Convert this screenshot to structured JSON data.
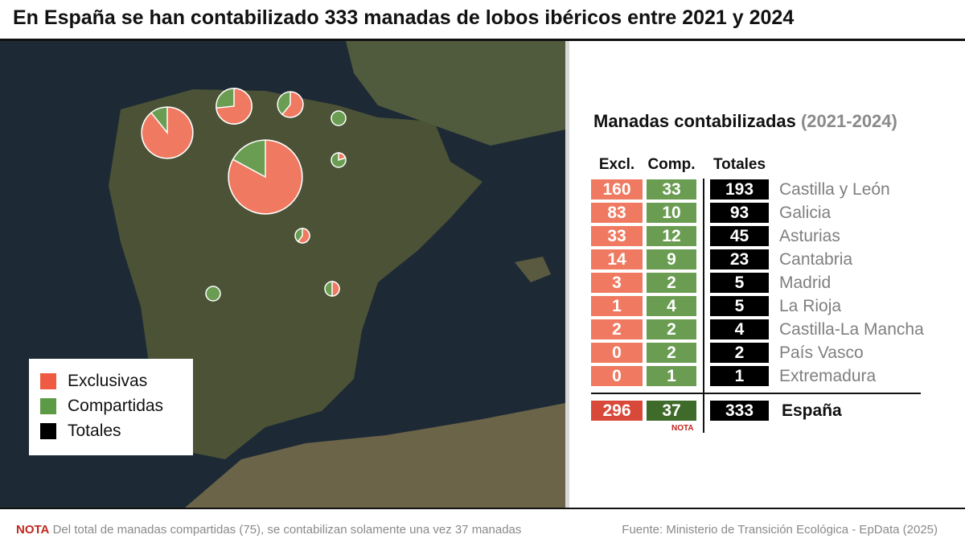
{
  "title": "En España se han contabilizado 333 manadas de lobos ibéricos entre 2021 y 2024",
  "legend": {
    "excl": "Exclusivas",
    "comp": "Compartidas",
    "tot": "Totales"
  },
  "panel": {
    "title": "Manadas contabilizadas",
    "period": "(2021-2024)",
    "headers": [
      "Excl.",
      "Comp.",
      "Totales"
    ],
    "nota": "NOTA"
  },
  "colors": {
    "excl": "#ef7a61",
    "comp": "#6a9d52",
    "tot": "#000000",
    "excl_total": "#d9493a",
    "comp_total": "#3f6b2a"
  },
  "chart_data": {
    "type": "table",
    "columns": [
      "Excl.",
      "Comp.",
      "Totales"
    ],
    "rows": [
      {
        "region": "Castilla y León",
        "excl": 160,
        "comp": 33,
        "total": 193
      },
      {
        "region": "Galicia",
        "excl": 83,
        "comp": 10,
        "total": 93
      },
      {
        "region": "Asturias",
        "excl": 33,
        "comp": 12,
        "total": 45
      },
      {
        "region": "Cantabria",
        "excl": 14,
        "comp": 9,
        "total": 23
      },
      {
        "region": "Madrid",
        "excl": 3,
        "comp": 2,
        "total": 5
      },
      {
        "region": "La Rioja",
        "excl": 1,
        "comp": 4,
        "total": 5
      },
      {
        "region": "Castilla-La Mancha",
        "excl": 2,
        "comp": 2,
        "total": 4
      },
      {
        "region": "País Vasco",
        "excl": 0,
        "comp": 2,
        "total": 2
      },
      {
        "region": "Extremadura",
        "excl": 0,
        "comp": 1,
        "total": 1
      }
    ],
    "totals": {
      "region": "España",
      "excl": 296,
      "comp": 37,
      "total": 333
    }
  },
  "footer": {
    "nota_label": "NOTA",
    "nota_text": "Del total de manadas compartidas (75), se contabilizan solamente una vez 37 manadas",
    "source": "Fuente: Ministerio de Transición Ecológica - EpData (2025)"
  }
}
